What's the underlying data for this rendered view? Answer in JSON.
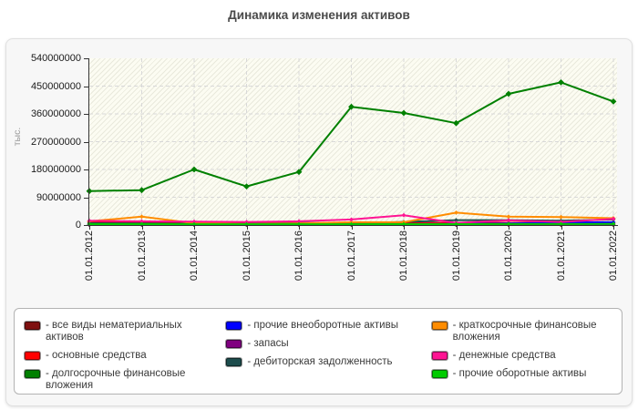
{
  "header": {
    "title": "Динамика изменения активов"
  },
  "chart_data": {
    "type": "line",
    "title": "Динамика изменения активов",
    "xlabel": "",
    "ylabel": "тыс.",
    "ylim": [
      0,
      540000000
    ],
    "ytick_step": 90000000,
    "yticks": [
      "0",
      "90000000",
      "180000000",
      "270000000",
      "360000000",
      "450000000",
      "540000000"
    ],
    "grid": true,
    "legend_position": "bottom",
    "categories": [
      "01.01.2012",
      "01.01.2013",
      "01.01.2014",
      "01.01.2015",
      "01.01.2016",
      "01.01.2017",
      "01.01.2018",
      "01.01.2019",
      "01.01.2020",
      "01.01.2021",
      "01.01.2022"
    ],
    "series": [
      {
        "name": "все виды нематериальных активов",
        "color": "#7f1010",
        "values": [
          300000,
          280000,
          260000,
          240000,
          220000,
          200000,
          180000,
          160000,
          150000,
          140000,
          130000
        ]
      },
      {
        "name": "основные средства",
        "color": "#ff0000",
        "values": [
          9000000,
          8000000,
          7000000,
          6000000,
          6000000,
          6500000,
          6500000,
          7000000,
          7000000,
          7500000,
          8000000
        ]
      },
      {
        "name": "долгосрочные финансовые вложения",
        "color": "#008000",
        "values": [
          110000000,
          113000000,
          180000000,
          125000000,
          172000000,
          383000000,
          363000000,
          330000000,
          425000000,
          462000000,
          400000000
        ]
      },
      {
        "name": "прочие внеоборотные активы",
        "color": "#0000ff",
        "values": [
          2000000,
          2000000,
          2000000,
          2500000,
          4000000,
          3500000,
          3000000,
          3500000,
          5000000,
          8000000,
          9000000
        ]
      },
      {
        "name": "запасы",
        "color": "#800080",
        "values": [
          1200000,
          1200000,
          1100000,
          1100000,
          1300000,
          1400000,
          1500000,
          1600000,
          1800000,
          2000000,
          2200000
        ]
      },
      {
        "name": "дебиторская задолженность",
        "color": "#1d4d4d",
        "values": [
          6000000,
          5000000,
          4000000,
          3500000,
          7000000,
          5500000,
          10000000,
          16000000,
          16000000,
          14000000,
          18000000
        ]
      },
      {
        "name": "краткосрочные финансовые вложения",
        "color": "#ff8c00",
        "values": [
          12000000,
          27000000,
          6000000,
          3000000,
          5000000,
          9000000,
          9000000,
          40000000,
          27000000,
          26000000,
          22000000
        ]
      },
      {
        "name": "денежные средства",
        "color": "#ff1493",
        "values": [
          14000000,
          12000000,
          11000000,
          10000000,
          12000000,
          18000000,
          32000000,
          7000000,
          15000000,
          10000000,
          20000000
        ]
      },
      {
        "name": "прочие оборотные активы",
        "color": "#00cc00",
        "values": [
          3000000,
          3000000,
          2800000,
          2800000,
          2800000,
          2800000,
          3000000,
          3000000,
          3200000,
          3200000,
          3500000
        ]
      }
    ]
  },
  "legend": {
    "separator": "-",
    "columns": [
      [
        {
          "label": "все виды нематериальных активов",
          "color": "#7f1010"
        },
        {
          "label": "основные средства",
          "color": "#ff0000"
        },
        {
          "label": "долгосрочные финансовые вложения",
          "color": "#008000"
        }
      ],
      [
        {
          "label": "прочие внеоборотные активы",
          "color": "#0000ff"
        },
        {
          "label": "запасы",
          "color": "#800080"
        },
        {
          "label": "дебиторская задолженность",
          "color": "#1d4d4d"
        }
      ],
      [
        {
          "label": "краткосрочные финансовые вложения",
          "color": "#ff8c00"
        },
        {
          "label": "денежные средства",
          "color": "#ff1493"
        },
        {
          "label": "прочие оборотные активы",
          "color": "#00cc00"
        }
      ]
    ]
  }
}
